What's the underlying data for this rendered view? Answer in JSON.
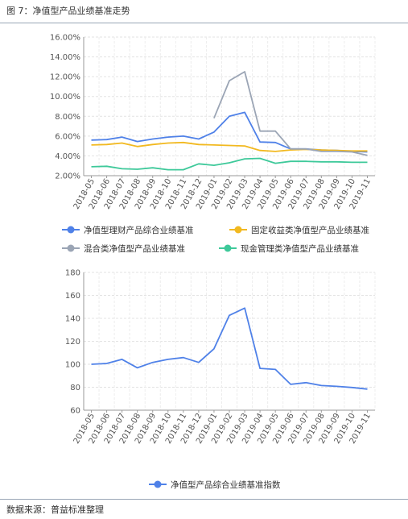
{
  "figure": {
    "title": "图 7：净值型产品业绩基准走势",
    "source": "数据来源：普益标准整理"
  },
  "chart_data": [
    {
      "type": "line",
      "categories": [
        "2018-05",
        "2018-06",
        "2018-07",
        "2018-08",
        "2018-09",
        "2018-10",
        "2018-11",
        "2018-12",
        "2019-01",
        "2019-02",
        "2019-03",
        "2019-04",
        "2019-05",
        "2019-06",
        "2019-07",
        "2019-08",
        "2019-09",
        "2019-10",
        "2019-11"
      ],
      "ylim": [
        2,
        16
      ],
      "yticks": [
        "2.00%",
        "4.00%",
        "6.00%",
        "8.00%",
        "10.00%",
        "12.00%",
        "14.00%",
        "16.00%"
      ],
      "grid": true,
      "legend_position": "bottom",
      "series": [
        {
          "name": "净值型理财产品综合业绩基准",
          "color": "#4f81e8",
          "values": [
            5.6,
            5.65,
            5.9,
            5.45,
            5.7,
            5.9,
            6.0,
            5.7,
            6.4,
            8.0,
            8.4,
            5.4,
            5.35,
            4.7,
            4.7,
            4.6,
            4.55,
            4.45,
            4.4
          ]
        },
        {
          "name": "固定收益类净值型产品业绩基准",
          "color": "#f2b920",
          "values": [
            5.1,
            5.15,
            5.3,
            4.95,
            5.15,
            5.3,
            5.35,
            5.15,
            5.1,
            5.05,
            5.0,
            4.55,
            4.45,
            4.6,
            4.65,
            4.6,
            4.55,
            4.5,
            4.5
          ]
        },
        {
          "name": "混合类净值型产品业绩基准",
          "color": "#9ba5b5",
          "values": [
            null,
            null,
            null,
            null,
            null,
            null,
            null,
            null,
            7.8,
            11.6,
            12.5,
            6.5,
            6.5,
            4.7,
            4.7,
            4.45,
            4.45,
            4.4,
            4.05
          ]
        },
        {
          "name": "现金管理类净值型产品业绩基准",
          "color": "#3ec99a",
          "values": [
            2.9,
            2.95,
            2.7,
            2.65,
            2.8,
            2.6,
            2.6,
            3.2,
            3.05,
            3.3,
            3.7,
            3.75,
            3.25,
            3.45,
            3.45,
            3.4,
            3.4,
            3.35,
            3.35
          ]
        }
      ]
    },
    {
      "type": "line",
      "categories": [
        "2018-05",
        "2018-06",
        "2018-07",
        "2018-08",
        "2018-09",
        "2018-10",
        "2018-11",
        "2018-12",
        "2019-01",
        "2019-02",
        "2019-03",
        "2019-04",
        "2019-05",
        "2019-06",
        "2019-07",
        "2019-08",
        "2019-09",
        "2019-10",
        "2019-11"
      ],
      "ylim": [
        60,
        180
      ],
      "yticks": [
        "60",
        "80",
        "100",
        "120",
        "140",
        "160",
        "180"
      ],
      "grid": true,
      "legend_position": "bottom",
      "series": [
        {
          "name": "净值型产品综合业绩基准指数",
          "color": "#4f81e8",
          "values": [
            100.0,
            100.7,
            104.3,
            96.9,
            101.6,
            104.3,
            105.8,
            101.6,
            113.5,
            142.6,
            148.9,
            96.4,
            95.5,
            82.5,
            84.0,
            81.5,
            80.8,
            79.8,
            78.4
          ]
        }
      ]
    }
  ]
}
